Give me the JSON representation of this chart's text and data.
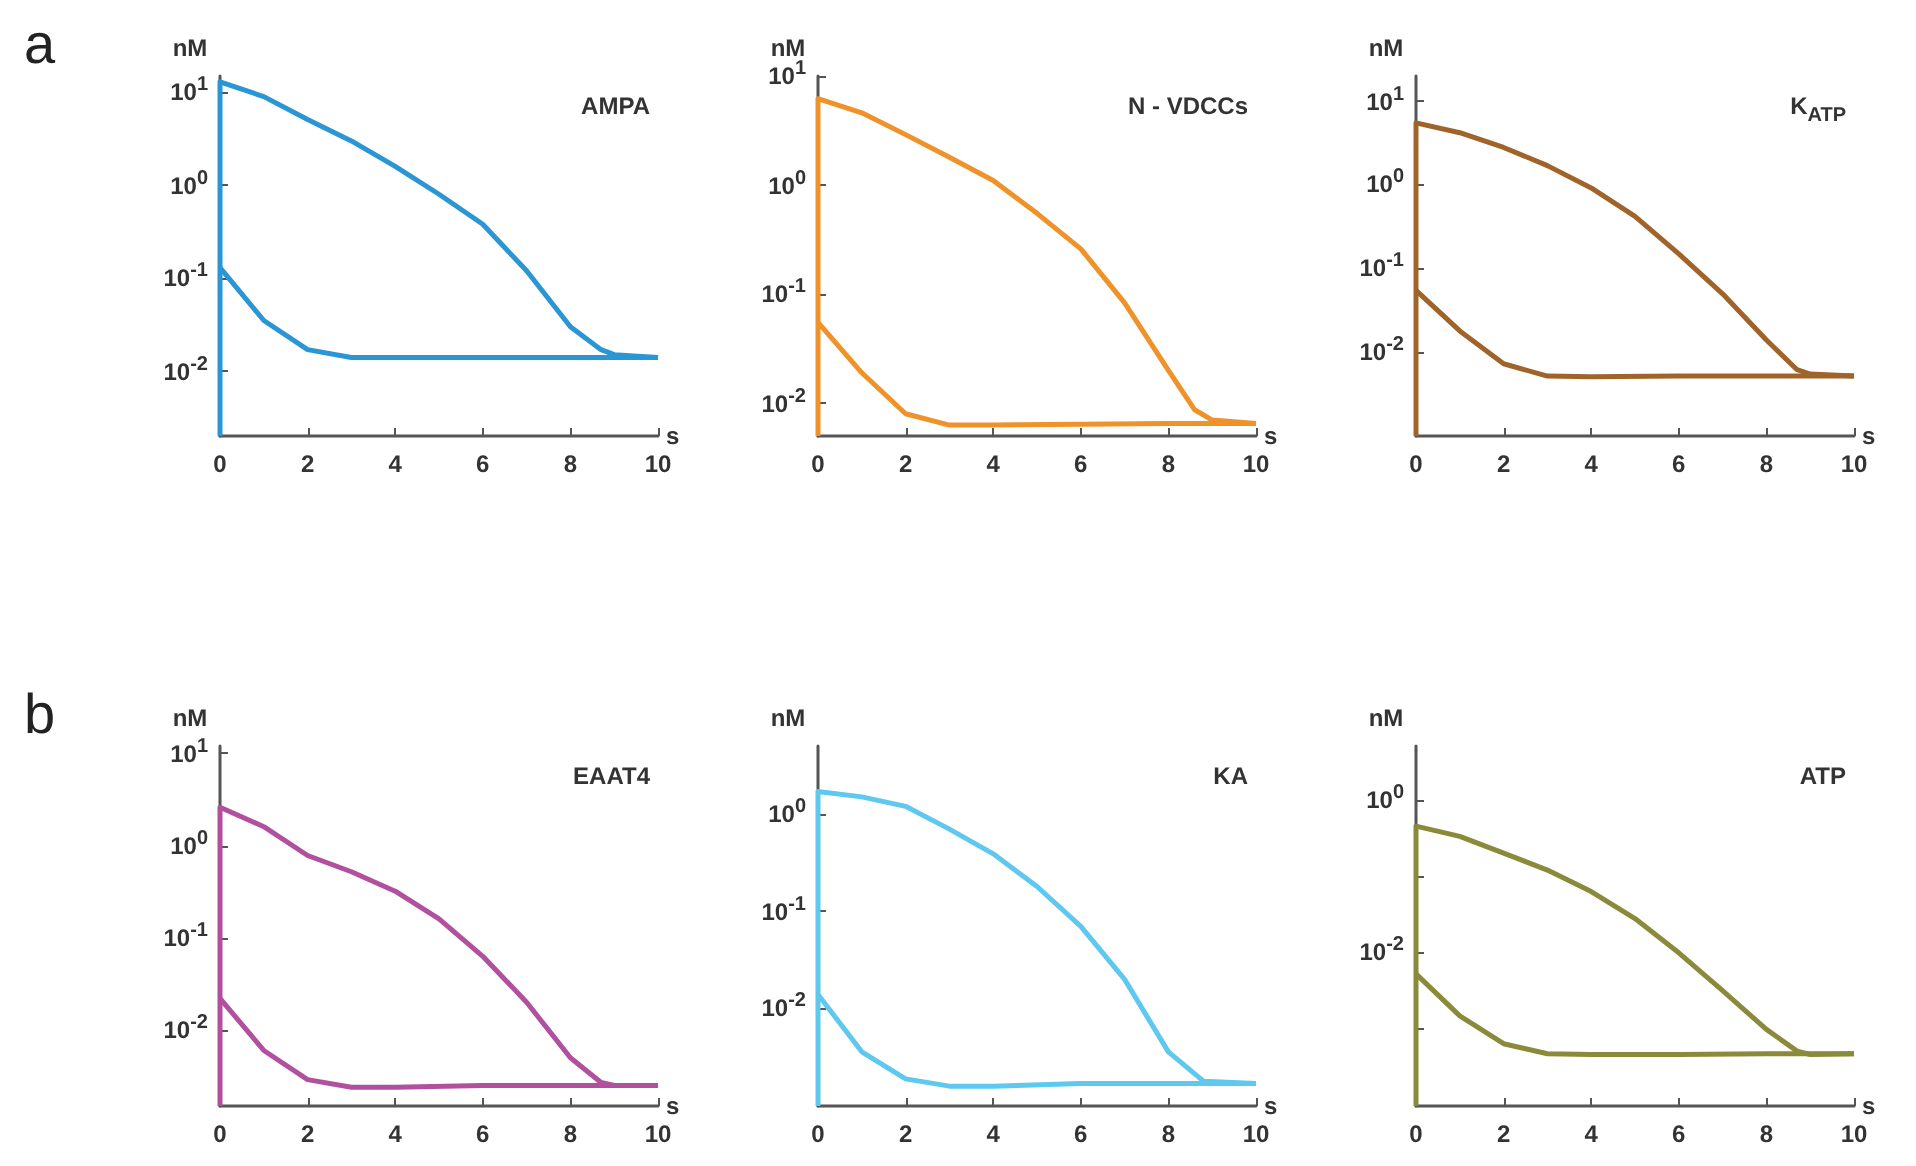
{
  "chart_data": [
    {
      "type": "line",
      "title": "AMPA",
      "xlabel": "s",
      "ylabel": "nM",
      "log": "y",
      "annotations": [
        "a"
      ],
      "xlim": [
        0,
        10
      ],
      "xticks": [
        0,
        2,
        4,
        6,
        8,
        10
      ],
      "ylim": [
        0.002,
        15
      ],
      "yticks": [
        {
          "value": 0.01,
          "label": "10$^{-2}$"
        },
        {
          "value": 0.1,
          "label": "10$^{-1}$"
        },
        {
          "value": 1,
          "label": "10$^{0}$"
        },
        {
          "value": 10,
          "label": "10$^{1}$"
        }
      ],
      "series": [
        {
          "color": "#2b96d4",
          "x": [
            0,
            0,
            1,
            2,
            3,
            4,
            5,
            6,
            7,
            8,
            8.7,
            9,
            10
          ],
          "values": [
            0.002,
            13,
            9,
            5.1,
            3,
            1.6,
            0.8,
            0.38,
            0.12,
            0.03,
            0.017,
            0.015,
            0.014
          ]
        },
        {
          "color": "#2b96d4",
          "x": [
            0,
            1,
            2,
            3,
            4,
            6,
            8,
            10
          ],
          "values": [
            0.13,
            0.035,
            0.017,
            0.014,
            0.014,
            0.014,
            0.014,
            0.014
          ]
        }
      ]
    },
    {
      "type": "line",
      "title": "N - VDCCs",
      "xlabel": "s",
      "ylabel": "nM",
      "log": "y",
      "xlim": [
        0,
        10
      ],
      "xticks": [
        0,
        2,
        4,
        6,
        8,
        10
      ],
      "ylim": [
        0.005,
        10
      ],
      "yticks": [
        {
          "value": 0.01,
          "label": "10$^{-2}$"
        },
        {
          "value": 0.1,
          "label": "10$^{-1}$"
        },
        {
          "value": 1,
          "label": "10$^{0}$"
        },
        {
          "value": 10,
          "label": "10$^{1}$"
        }
      ],
      "series": [
        {
          "color": "#f0922a",
          "x": [
            0,
            0,
            1,
            2,
            3,
            4,
            5,
            6,
            7,
            8,
            8.6,
            9,
            10
          ],
          "values": [
            0.005,
            6.2,
            4.6,
            2.9,
            1.8,
            1.1,
            0.55,
            0.26,
            0.083,
            0.02,
            0.0087,
            0.007,
            0.0065
          ]
        },
        {
          "color": "#f0922a",
          "x": [
            0,
            1,
            2,
            3,
            4,
            6,
            8,
            10
          ],
          "values": [
            0.055,
            0.019,
            0.008,
            0.0063,
            0.0063,
            0.0064,
            0.0065,
            0.0065
          ]
        }
      ]
    },
    {
      "type": "line",
      "title": "K$_{ATP}$",
      "xlabel": "s",
      "ylabel": "nM",
      "log": "y",
      "xlim": [
        0,
        10
      ],
      "xticks": [
        0,
        2,
        4,
        6,
        8,
        10
      ],
      "ylim": [
        0.001,
        20
      ],
      "yticks": [
        {
          "value": 0.01,
          "label": "10$^{-2}$"
        },
        {
          "value": 0.1,
          "label": "10$^{-1}$"
        },
        {
          "value": 1,
          "label": "10$^{0}$"
        },
        {
          "value": 10,
          "label": "10$^{1}$"
        }
      ],
      "series": [
        {
          "color": "#a0642a",
          "x": [
            0,
            0,
            1,
            2,
            3,
            4,
            5,
            6,
            7,
            8,
            8.7,
            9,
            10
          ],
          "values": [
            0.001,
            5.5,
            4.2,
            2.8,
            1.7,
            0.92,
            0.42,
            0.15,
            0.05,
            0.014,
            0.0062,
            0.0055,
            0.0052
          ]
        },
        {
          "color": "#a0642a",
          "x": [
            0,
            1,
            2,
            3,
            4,
            6,
            8,
            10
          ],
          "values": [
            0.055,
            0.018,
            0.0073,
            0.0052,
            0.0051,
            0.0052,
            0.0052,
            0.0052
          ]
        }
      ]
    },
    {
      "type": "line",
      "title": "EAAT4",
      "xlabel": "s",
      "ylabel": "nM",
      "log": "y",
      "annotations": [
        "b"
      ],
      "xlim": [
        0,
        10
      ],
      "xticks": [
        0,
        2,
        4,
        6,
        8,
        10
      ],
      "ylim": [
        0.0015,
        12
      ],
      "yticks": [
        {
          "value": 0.01,
          "label": "10$^{-2}$"
        },
        {
          "value": 0.1,
          "label": "10$^{-1}$"
        },
        {
          "value": 1,
          "label": "10$^{0}$"
        },
        {
          "value": 10,
          "label": "10$^{1}$"
        }
      ],
      "series": [
        {
          "color": "#b0509e",
          "x": [
            0,
            0,
            1,
            2,
            3,
            4,
            5,
            6,
            7,
            8,
            8.7,
            9,
            10
          ],
          "values": [
            0.0015,
            2.6,
            1.6,
            0.78,
            0.52,
            0.32,
            0.16,
            0.063,
            0.02,
            0.005,
            0.0027,
            0.0025,
            0.0025
          ]
        },
        {
          "color": "#b0509e",
          "x": [
            0,
            1,
            2,
            3,
            4,
            6,
            8,
            10
          ],
          "values": [
            0.022,
            0.006,
            0.0029,
            0.0024,
            0.0024,
            0.0025,
            0.0025,
            0.0025
          ]
        }
      ]
    },
    {
      "type": "line",
      "title": "KA",
      "xlabel": "s",
      "ylabel": "nM",
      "log": "y",
      "xlim": [
        0,
        10
      ],
      "xticks": [
        0,
        2,
        4,
        6,
        8,
        10
      ],
      "ylim": [
        0.001,
        5
      ],
      "yticks": [
        {
          "value": 0.01,
          "label": "10$^{-2}$"
        },
        {
          "value": 0.1,
          "label": "10$^{-1}$"
        },
        {
          "value": 1,
          "label": "10$^{0}$"
        }
      ],
      "series": [
        {
          "color": "#5ec8ee",
          "x": [
            0,
            0,
            1,
            2,
            3,
            4,
            5,
            6,
            7,
            8,
            8.8,
            10
          ],
          "values": [
            0.001,
            1.7,
            1.5,
            1.2,
            0.7,
            0.39,
            0.18,
            0.07,
            0.02,
            0.0036,
            0.0018,
            0.0017
          ]
        },
        {
          "color": "#5ec8ee",
          "x": [
            0,
            1,
            2,
            3,
            4,
            6,
            8,
            10
          ],
          "values": [
            0.014,
            0.0036,
            0.0019,
            0.0016,
            0.0016,
            0.0017,
            0.0017,
            0.0017
          ]
        }
      ]
    },
    {
      "type": "line",
      "title": "ATP",
      "xlabel": "s",
      "ylabel": "nM",
      "log": "y",
      "xlim": [
        0,
        10
      ],
      "xticks": [
        0,
        2,
        4,
        6,
        8,
        10
      ],
      "ylim": [
        0.0001,
        5
      ],
      "yticks": [
        {
          "value": 0.001,
          "label": null
        },
        {
          "value": 0.01,
          "label": "10$^{-2}$"
        },
        {
          "value": 0.1,
          "label": null
        },
        {
          "value": 1,
          "label": "10$^{0}$"
        }
      ],
      "series": [
        {
          "color": "#8b8a3a",
          "x": [
            0,
            0,
            1,
            2,
            3,
            4,
            5,
            6,
            7,
            8,
            8.7,
            9,
            10
          ],
          "values": [
            0.0001,
            0.45,
            0.33,
            0.2,
            0.12,
            0.063,
            0.028,
            0.01,
            0.0032,
            0.001,
            0.00052,
            0.00047,
            0.00048
          ]
        },
        {
          "color": "#8b8a3a",
          "x": [
            0,
            1,
            2,
            3,
            4,
            6,
            8,
            10
          ],
          "values": [
            0.0053,
            0.0015,
            0.00065,
            0.00048,
            0.00047,
            0.00047,
            0.00048,
            0.00048
          ]
        }
      ]
    }
  ]
}
